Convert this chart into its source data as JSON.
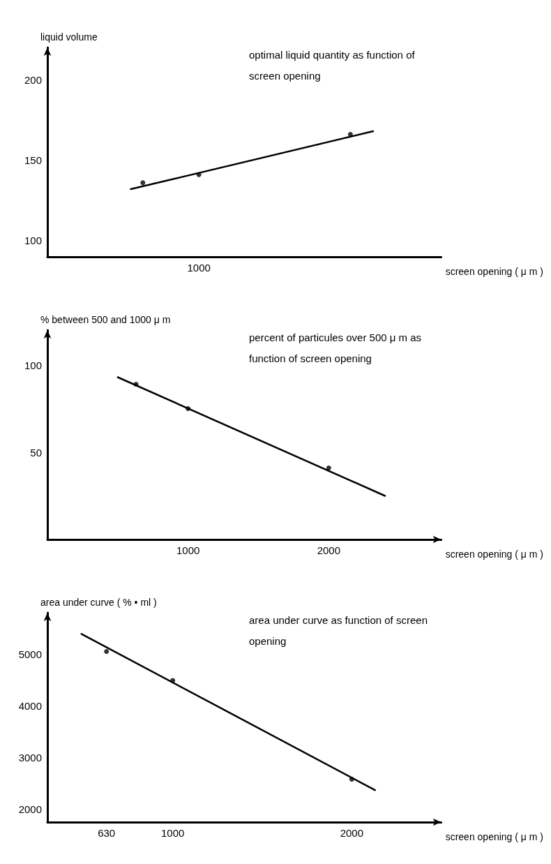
{
  "chart_data": [
    {
      "type": "scatter",
      "title": "optimal liquid quantity as function of screen opening",
      "ylabel": "liquid volume",
      "xlabel": "screen opening ( μ m )",
      "ylim": [
        90,
        220
      ],
      "yticks": [
        100,
        150,
        200
      ],
      "grid": false,
      "marker": "circle",
      "categories": [
        null,
        null,
        null,
        null,
        null,
        null,
        null,
        null,
        null,
        null,
        null,
        null,
        null,
        null,
        null,
        null,
        null,
        null,
        null,
        null,
        null,
        null,
        null,
        null,
        null,
        null,
        null,
        null,
        null,
        null,
        null,
        null,
        null,
        null,
        null,
        null,
        null,
        null,
        null,
        null,
        null,
        null,
        null,
        null,
        null,
        null,
        null,
        null,
        null,
        null,
        null,
        null,
        null,
        null,
        null,
        null,
        null,
        null,
        null,
        null,
        null,
        null,
        null,
        null,
        null,
        null,
        null,
        null,
        null,
        null,
        null,
        null,
        null,
        null,
        null,
        null,
        null,
        null,
        null,
        null,
        null,
        null,
        null,
        null,
        null,
        null,
        null,
        null,
        null,
        null,
        null,
        null,
        null,
        null,
        null,
        null,
        null,
        null,
        null,
        null,
        "1000",
        null,
        null,
        null,
        null,
        null,
        null,
        null,
        null,
        null,
        null,
        null,
        null,
        null,
        null,
        null,
        null,
        null,
        null,
        null,
        null,
        null,
        null,
        null,
        null,
        null,
        null,
        null,
        null,
        null,
        null,
        null,
        null,
        null,
        null,
        null,
        null,
        null,
        null,
        null,
        null,
        null,
        null,
        null,
        null,
        null,
        null,
        null,
        null,
        null,
        null,
        null,
        null,
        null,
        null,
        null,
        null,
        null,
        null,
        null,
        null,
        null,
        null,
        null,
        null,
        null,
        null,
        null,
        null,
        null,
        null,
        null,
        null,
        null,
        null,
        null,
        null,
        null,
        null,
        null,
        null,
        null,
        null,
        null,
        null,
        null,
        null,
        null,
        null,
        null,
        null,
        null,
        null,
        null,
        null,
        null,
        null,
        null,
        null,
        null,
        null,
        null,
        null,
        null,
        null,
        null,
        null,
        null,
        null,
        null,
        null,
        null,
        null,
        null,
        null,
        null,
        null,
        null,
        null,
        null,
        null,
        null,
        null,
        null,
        null,
        null,
        null,
        null,
        null,
        null,
        null,
        null,
        null,
        null,
        null,
        null,
        null,
        null,
        null,
        null,
        null,
        null,
        null,
        null,
        null,
        null,
        null,
        null,
        null,
        null,
        null,
        null,
        null,
        null,
        null,
        null,
        null,
        null,
        null,
        null,
        null
      ],
      "series": [
        {
          "type": "scatter",
          "color": "#000000",
          "values": [
            null,
            null,
            null,
            null,
            null,
            null,
            null,
            null,
            null,
            null,
            null,
            null,
            null,
            null,
            null,
            null,
            null,
            null,
            null,
            null,
            null,
            null,
            null,
            null,
            null,
            null,
            null,
            null,
            null,
            null,
            null,
            null,
            null,
            null,
            null,
            null,
            null,
            null,
            null,
            null,
            null,
            null,
            null,
            null,
            null,
            null,
            null,
            null,
            null,
            null,
            null,
            null,
            null,
            null,
            null,
            null,
            null,
            null,
            null,
            null,
            null,
            null,
            null,
            136,
            null,
            null,
            null,
            null,
            null,
            null,
            null,
            null,
            null,
            null,
            null,
            null,
            null,
            null,
            null,
            null,
            null,
            null,
            null,
            null,
            null,
            null,
            null,
            null,
            null,
            null,
            null,
            null,
            null,
            null,
            null,
            null,
            null,
            null,
            null,
            null,
            141,
            null,
            null,
            null,
            null,
            null,
            null,
            null,
            null,
            null,
            null,
            null,
            null,
            null,
            null,
            null,
            null,
            null,
            null,
            null,
            null,
            null,
            null,
            null,
            null,
            null,
            null,
            null,
            null,
            null,
            null,
            null,
            null,
            null,
            null,
            null,
            null,
            null,
            null,
            null,
            null,
            null,
            null,
            null,
            null,
            null,
            null,
            null,
            null,
            null,
            null,
            null,
            null,
            null,
            null,
            null,
            null,
            null,
            null,
            null,
            null,
            null,
            null,
            null,
            null,
            null,
            null,
            null,
            null,
            null,
            null,
            null,
            null,
            null,
            null,
            null,
            null,
            null,
            null,
            null,
            null,
            null,
            null,
            null,
            null,
            null,
            null,
            null,
            null,
            null,
            null,
            null,
            null,
            null,
            null,
            null,
            null,
            null,
            null,
            null,
            166,
            null,
            null,
            null,
            null,
            null,
            null,
            null,
            null,
            null,
            null,
            null,
            null,
            null,
            null,
            null,
            null,
            null,
            null,
            null,
            null,
            null,
            null,
            null,
            null,
            null,
            null,
            null,
            null,
            null,
            null,
            null,
            null,
            null,
            null,
            null,
            null,
            null,
            null,
            null,
            null,
            null,
            null,
            null,
            null,
            null,
            null,
            null,
            null,
            null,
            null,
            null,
            null,
            null,
            null,
            null,
            null,
            null,
            null,
            null,
            null
          ]
        },
        {
          "type": "line",
          "color": "#000000",
          "marker": "none",
          "line_style": "solid",
          "values": [
            null,
            null,
            null,
            null,
            null,
            null,
            null,
            null,
            null,
            null,
            null,
            null,
            null,
            null,
            null,
            null,
            null,
            null,
            null,
            null,
            null,
            null,
            null,
            null,
            null,
            null,
            null,
            null,
            null,
            null,
            null,
            null,
            null,
            null,
            null,
            null,
            null,
            null,
            null,
            null,
            null,
            null,
            null,
            null,
            null,
            null,
            null,
            null,
            null,
            null,
            null,
            null,
            null,
            null,
            null,
            132,
            null,
            null,
            null,
            null,
            null,
            null,
            null,
            null,
            null,
            null,
            null,
            null,
            null,
            null,
            null,
            null,
            null,
            null,
            null,
            null,
            null,
            null,
            null,
            null,
            null,
            null,
            null,
            null,
            null,
            null,
            null,
            null,
            null,
            null,
            null,
            null,
            null,
            null,
            null,
            null,
            null,
            null,
            null,
            null,
            null,
            null,
            null,
            null,
            null,
            null,
            null,
            null,
            null,
            null,
            null,
            null,
            null,
            null,
            null,
            null,
            null,
            null,
            null,
            null,
            null,
            null,
            null,
            null,
            null,
            null,
            null,
            null,
            null,
            null,
            null,
            null,
            null,
            null,
            null,
            null,
            null,
            null,
            null,
            null,
            null,
            null,
            null,
            null,
            null,
            null,
            null,
            null,
            null,
            null,
            null,
            null,
            null,
            null,
            null,
            null,
            null,
            null,
            null,
            null,
            null,
            null,
            null,
            null,
            null,
            null,
            null,
            null,
            null,
            null,
            null,
            null,
            null,
            null,
            null,
            null,
            null,
            null,
            null,
            null,
            null,
            null,
            null,
            null,
            null,
            null,
            null,
            null,
            null,
            null,
            null,
            null,
            null,
            null,
            null,
            null,
            null,
            null,
            null,
            null,
            null,
            null,
            null,
            null,
            null,
            null,
            null,
            null,
            null,
            null,
            null,
            null,
            null,
            null,
            null,
            168,
            null,
            null,
            null,
            null,
            null,
            null,
            null,
            null,
            null,
            null,
            null,
            null,
            null,
            null,
            null,
            null,
            null,
            null,
            null,
            null,
            null,
            null,
            null,
            null,
            null,
            null,
            null,
            null,
            null,
            null,
            null,
            null,
            null,
            null,
            null,
            null,
            null,
            null,
            null,
            null,
            null,
            null,
            null,
            null,
            null
          ]
        }
      ]
    },
    {
      "type": "scatter",
      "title": "percent of particules over 500 μ m as function of screen opening",
      "ylabel": "% between 500 and 1000 μ m",
      "xlabel": "screen opening ( μ m )",
      "xlim": [
        0,
        2800
      ],
      "xticks": [
        1000,
        2000
      ],
      "ylim": [
        0,
        120
      ],
      "yticks": [
        50,
        100
      ],
      "grid": false,
      "marker": "circle",
      "series": [
        {
          "type": "scatter",
          "color": "#000000",
          "x": [
            630,
            1000,
            2000
          ],
          "values": [
            89,
            75,
            41
          ]
        },
        {
          "type": "line",
          "color": "#000000",
          "marker": "none",
          "line_style": "solid",
          "x": [
            500,
            2400
          ],
          "values": [
            93,
            25
          ]
        }
      ]
    },
    {
      "type": "scatter",
      "title": "area under curve as function of screen opening",
      "ylabel": "area under curve ( % • ml )",
      "xlabel": "screen opening ( μ m )",
      "xlim": [
        300,
        2500
      ],
      "xticks": [
        630,
        1000,
        2000
      ],
      "ylim": [
        1750,
        5800
      ],
      "yticks": [
        2000,
        3000,
        4000,
        5000
      ],
      "grid": false,
      "marker": "circle",
      "series": [
        {
          "type": "scatter",
          "color": "#000000",
          "x": [
            630,
            1000,
            2000
          ],
          "values": [
            5050,
            4490,
            2580
          ]
        },
        {
          "type": "line",
          "color": "#000000",
          "marker": "none",
          "line_style": "solid",
          "x": [
            490,
            2130
          ],
          "values": [
            5390,
            2370
          ]
        }
      ]
    }
  ]
}
